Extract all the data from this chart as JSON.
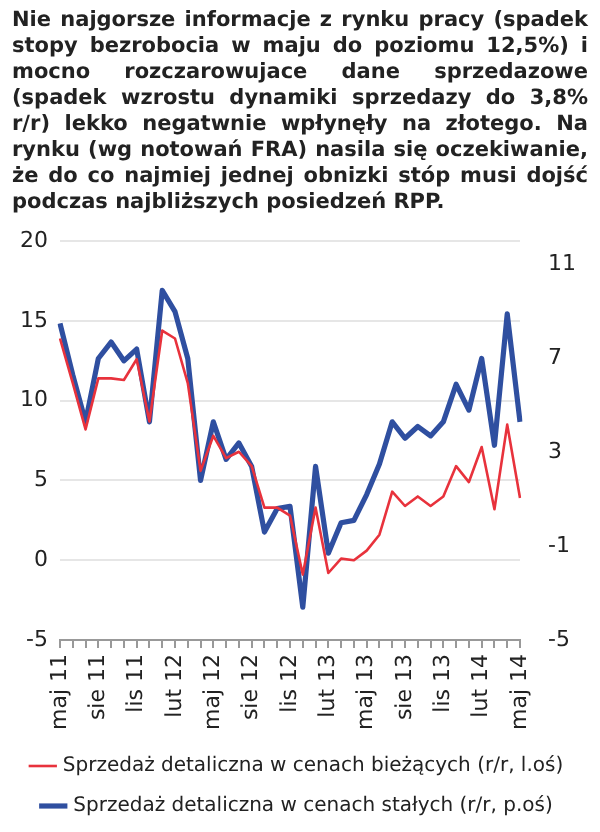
{
  "chart_data": {
    "type": "line",
    "title": "Nie najgorsze informacje z rynku pracy (spadek stopy bezrobocia w maju do poziomu 12,5%) i mocno rozczarowujace dane sprzedazowe (spadek wzrostu dynamiki sprzedazy do 3,8% r/r) lekko negatwnie wpłynęły na złotego. Na rynku (wg notowań FRA) nasila się oczekiwanie, że do co najmiej jednej obnizki stóp musi dojść podczas najbliższych posiedzeń RPP.",
    "categories": [
      "maj 11",
      null,
      null,
      "sie 11",
      null,
      null,
      "lis 11",
      null,
      null,
      "lut 12",
      null,
      null,
      "maj 12",
      null,
      null,
      "sie 12",
      null,
      null,
      "lis 12",
      null,
      null,
      "lut 13",
      null,
      null,
      "maj 13",
      null,
      null,
      "sie 13",
      null,
      null,
      "lis 13",
      null,
      null,
      "lut 14",
      null,
      null,
      "maj 14"
    ],
    "series": [
      {
        "name": "Sprzedaż detaliczna w cenach bieżących (r/r, l.oś)",
        "color": "#e8323c",
        "values": [
          13.9,
          11.1,
          8.2,
          11.4,
          11.4,
          11.3,
          12.6,
          8.7,
          14.4,
          13.9,
          11.1,
          5.6,
          7.8,
          6.4,
          6.8,
          5.9,
          3.3,
          3.3,
          2.8,
          -0.9,
          3.3,
          -0.8,
          0.1,
          0,
          0.6,
          1.6,
          4.3,
          3.4,
          4.0,
          3.4,
          4.0,
          5.9,
          4.9,
          7.1,
          3.2,
          8.5,
          3.9
        ]
      },
      {
        "name": "Sprzedaż detaliczna w cenach stałych (r/r, p.oś)",
        "color": "#2f4fa0",
        "axis": "y2",
        "values": [
          8.5,
          6.3,
          4.3,
          7.0,
          7.7,
          6.9,
          7.4,
          4.3,
          9.9,
          9.0,
          7.0,
          1.8,
          4.3,
          2.7,
          3.4,
          2.4,
          -0.4,
          0.6,
          0.7,
          -3.6,
          2.4,
          -1.3,
          0.0,
          0.1,
          1.2,
          2.5,
          4.3,
          3.6,
          4.1,
          3.7,
          4.3,
          5.9,
          4.8,
          7.0,
          3.3,
          8.9,
          4.3
        ]
      }
    ],
    "ylim": [
      -5,
      20
    ],
    "yticks": [
      -5,
      0,
      5,
      10,
      15,
      20
    ],
    "y2lim": [
      -5,
      12
    ],
    "y2ticks": [
      -5,
      -1,
      3,
      7,
      11
    ],
    "grid": "y",
    "legend": "bottom"
  }
}
